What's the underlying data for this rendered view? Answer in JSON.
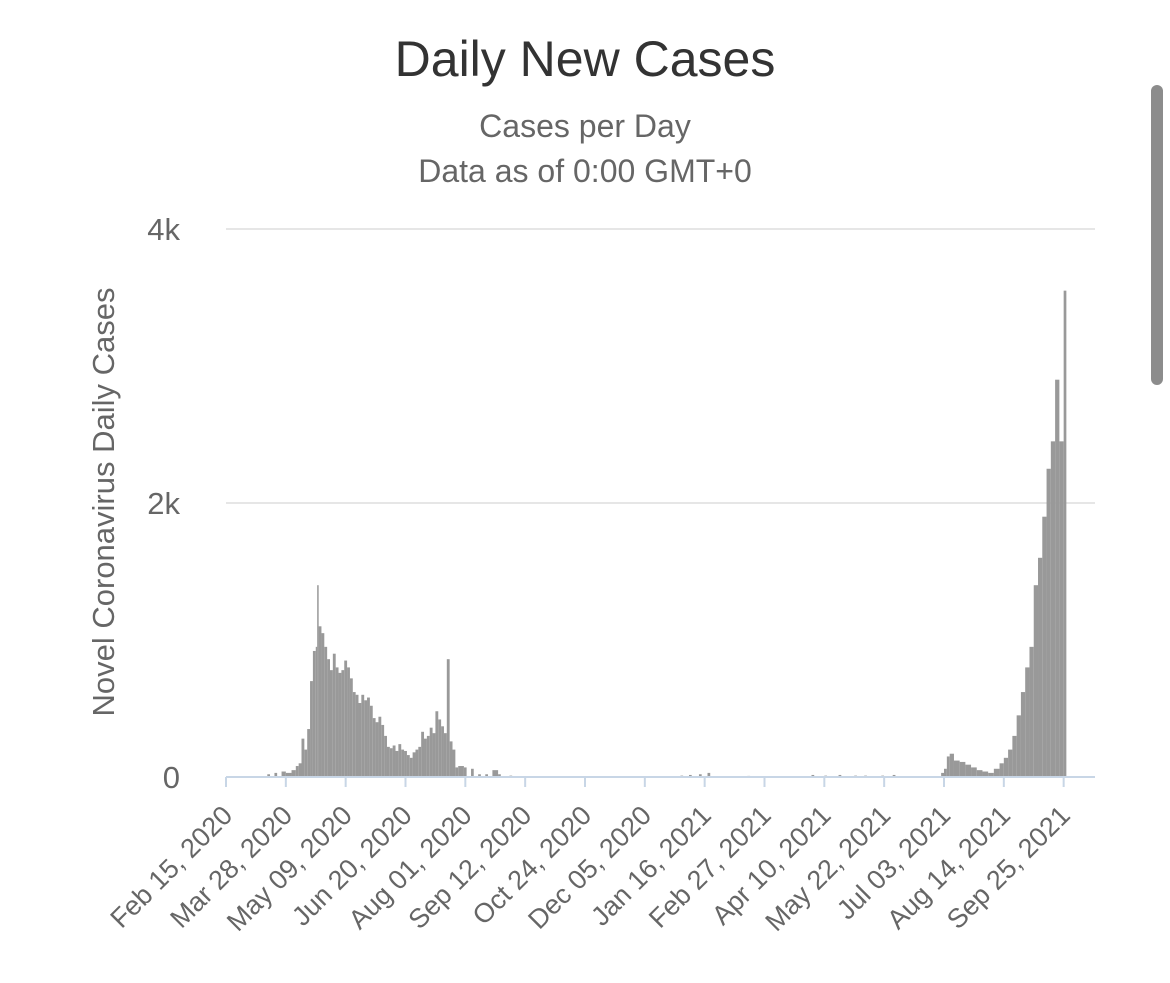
{
  "chart_data": {
    "type": "bar",
    "title": "Daily New Cases",
    "subtitle": [
      "Cases per Day",
      "Data as of 0:00 GMT+0"
    ],
    "ylabel": "Novel Coronavirus Daily Cases",
    "xlabel": "",
    "ylim": [
      0,
      4000
    ],
    "yticks": [
      {
        "value": 0,
        "label": "0"
      },
      {
        "value": 2000,
        "label": "2k"
      },
      {
        "value": 4000,
        "label": "4k"
      }
    ],
    "x_range": [
      "2020-02-15",
      "2021-10-17"
    ],
    "xtick_labels": [
      "Feb 15, 2020",
      "Mar 28, 2020",
      "May 09, 2020",
      "Jun 20, 2020",
      "Aug 01, 2020",
      "Sep 12, 2020",
      "Oct 24, 2020",
      "Dec 05, 2020",
      "Jan 16, 2021",
      "Feb 27, 2021",
      "Apr 10, 2021",
      "May 22, 2021",
      "Jul 03, 2021",
      "Aug 14, 2021",
      "Sep 25, 2021"
    ],
    "grid": true,
    "bar_color": "#999999",
    "series": [
      {
        "values": [
          [
            "2020-03-15",
            20
          ],
          [
            "2020-03-20",
            30
          ],
          [
            "2020-03-25",
            40
          ],
          [
            "2020-03-28",
            30
          ],
          [
            "2020-04-01",
            50
          ],
          [
            "2020-04-04",
            80
          ],
          [
            "2020-04-06",
            100
          ],
          [
            "2020-04-08",
            280
          ],
          [
            "2020-04-10",
            200
          ],
          [
            "2020-04-12",
            350
          ],
          [
            "2020-04-14",
            700
          ],
          [
            "2020-04-16",
            920
          ],
          [
            "2020-04-18",
            950
          ],
          [
            "2020-04-19",
            1400
          ],
          [
            "2020-04-20",
            1100
          ],
          [
            "2020-04-22",
            1050
          ],
          [
            "2020-04-24",
            950
          ],
          [
            "2020-04-26",
            860
          ],
          [
            "2020-04-28",
            780
          ],
          [
            "2020-04-30",
            900
          ],
          [
            "2020-05-02",
            800
          ],
          [
            "2020-05-04",
            760
          ],
          [
            "2020-05-06",
            780
          ],
          [
            "2020-05-08",
            850
          ],
          [
            "2020-05-10",
            800
          ],
          [
            "2020-05-12",
            720
          ],
          [
            "2020-05-14",
            620
          ],
          [
            "2020-05-16",
            600
          ],
          [
            "2020-05-18",
            540
          ],
          [
            "2020-05-20",
            600
          ],
          [
            "2020-05-22",
            560
          ],
          [
            "2020-05-24",
            580
          ],
          [
            "2020-05-26",
            520
          ],
          [
            "2020-05-28",
            430
          ],
          [
            "2020-05-30",
            400
          ],
          [
            "2020-06-01",
            440
          ],
          [
            "2020-06-03",
            380
          ],
          [
            "2020-06-05",
            300
          ],
          [
            "2020-06-07",
            220
          ],
          [
            "2020-06-09",
            210
          ],
          [
            "2020-06-11",
            230
          ],
          [
            "2020-06-13",
            190
          ],
          [
            "2020-06-15",
            240
          ],
          [
            "2020-06-17",
            200
          ],
          [
            "2020-06-19",
            190
          ],
          [
            "2020-06-21",
            160
          ],
          [
            "2020-06-23",
            140
          ],
          [
            "2020-06-25",
            180
          ],
          [
            "2020-06-27",
            200
          ],
          [
            "2020-06-29",
            220
          ],
          [
            "2020-07-01",
            330
          ],
          [
            "2020-07-03",
            280
          ],
          [
            "2020-07-05",
            300
          ],
          [
            "2020-07-07",
            360
          ],
          [
            "2020-07-09",
            320
          ],
          [
            "2020-07-11",
            480
          ],
          [
            "2020-07-13",
            420
          ],
          [
            "2020-07-15",
            370
          ],
          [
            "2020-07-17",
            320
          ],
          [
            "2020-07-19",
            860
          ],
          [
            "2020-07-21",
            260
          ],
          [
            "2020-07-23",
            200
          ],
          [
            "2020-07-25",
            70
          ],
          [
            "2020-07-27",
            80
          ],
          [
            "2020-07-31",
            70
          ],
          [
            "2020-08-05",
            60
          ],
          [
            "2020-08-10",
            20
          ],
          [
            "2020-08-15",
            20
          ],
          [
            "2020-08-20",
            50
          ],
          [
            "2020-08-24",
            20
          ],
          [
            "2020-09-01",
            10
          ],
          [
            "2020-12-30",
            10
          ],
          [
            "2021-01-05",
            15
          ],
          [
            "2021-01-12",
            20
          ],
          [
            "2021-01-18",
            30
          ],
          [
            "2021-02-15",
            8
          ],
          [
            "2021-04-01",
            15
          ],
          [
            "2021-04-10",
            10
          ],
          [
            "2021-04-20",
            15
          ],
          [
            "2021-05-01",
            10
          ],
          [
            "2021-05-08",
            10
          ],
          [
            "2021-05-20",
            10
          ],
          [
            "2021-05-28",
            15
          ],
          [
            "2021-07-01",
            30
          ],
          [
            "2021-07-03",
            60
          ],
          [
            "2021-07-05",
            150
          ],
          [
            "2021-07-07",
            170
          ],
          [
            "2021-07-10",
            120
          ],
          [
            "2021-07-14",
            110
          ],
          [
            "2021-07-18",
            90
          ],
          [
            "2021-07-22",
            70
          ],
          [
            "2021-07-26",
            50
          ],
          [
            "2021-07-30",
            40
          ],
          [
            "2021-08-03",
            30
          ],
          [
            "2021-08-07",
            60
          ],
          [
            "2021-08-11",
            100
          ],
          [
            "2021-08-14",
            140
          ],
          [
            "2021-08-17",
            200
          ],
          [
            "2021-08-20",
            300
          ],
          [
            "2021-08-23",
            450
          ],
          [
            "2021-08-26",
            620
          ],
          [
            "2021-08-29",
            800
          ],
          [
            "2021-09-01",
            950
          ],
          [
            "2021-09-04",
            1400
          ],
          [
            "2021-09-07",
            1600
          ],
          [
            "2021-09-10",
            1900
          ],
          [
            "2021-09-13",
            2250
          ],
          [
            "2021-09-16",
            2450
          ],
          [
            "2021-09-19",
            2900
          ],
          [
            "2021-09-22",
            2450
          ],
          [
            "2021-09-25",
            3550
          ]
        ]
      }
    ]
  }
}
